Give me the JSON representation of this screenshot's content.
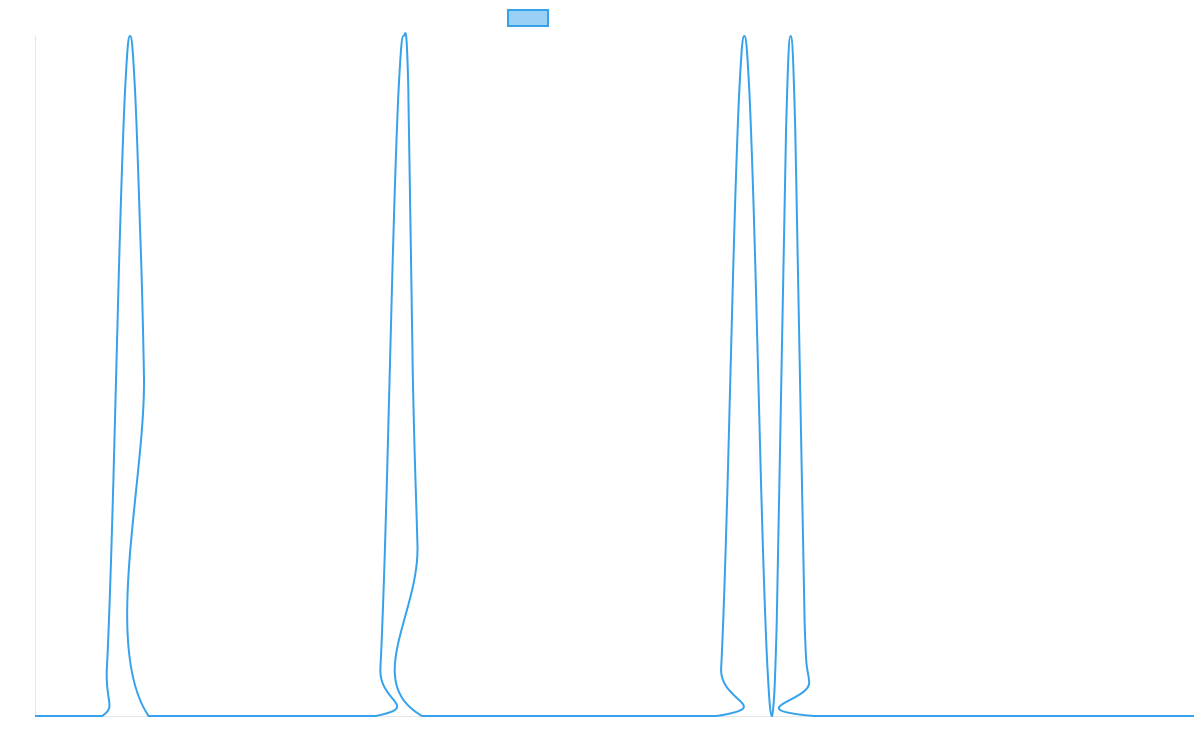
{
  "chart_data": {
    "type": "line",
    "title": "",
    "xlabel": "",
    "ylabel": "",
    "xlim": [
      0,
      1000
    ],
    "ylim": [
      0,
      1
    ],
    "grid": false,
    "legend": {
      "position": "top-center",
      "entries": [
        {
          "name": "",
          "color": "#36a2eb",
          "fill": "#9ad0f5"
        }
      ]
    },
    "series": [
      {
        "name": "",
        "color": "#36a2eb",
        "x": [
          0,
          58,
          62,
          66,
          70,
          74,
          78,
          82,
          86,
          90,
          94,
          98,
          294,
          298,
          302,
          306,
          310,
          314,
          318,
          322,
          326,
          330,
          334,
          588,
          592,
          596,
          600,
          604,
          608,
          612,
          616,
          620,
          624,
          628,
          632,
          636,
          640,
          644,
          648,
          652,
          656,
          660,
          664,
          668,
          672,
          1000
        ],
        "y": [
          0,
          0,
          0.07,
          0.25,
          0.5,
          0.75,
          0.93,
          1.0,
          0.93,
          0.75,
          0.5,
          0,
          0,
          0.07,
          0.25,
          0.5,
          0.75,
          0.93,
          1.0,
          0.93,
          0.5,
          0.25,
          0,
          0,
          0.07,
          0.25,
          0.5,
          0.75,
          0.93,
          1.0,
          0.93,
          0.75,
          0.5,
          0.25,
          0.07,
          0,
          0.14,
          0.5,
          0.86,
          1.0,
          0.86,
          0.5,
          0.14,
          0.05,
          0,
          0
        ]
      }
    ]
  }
}
